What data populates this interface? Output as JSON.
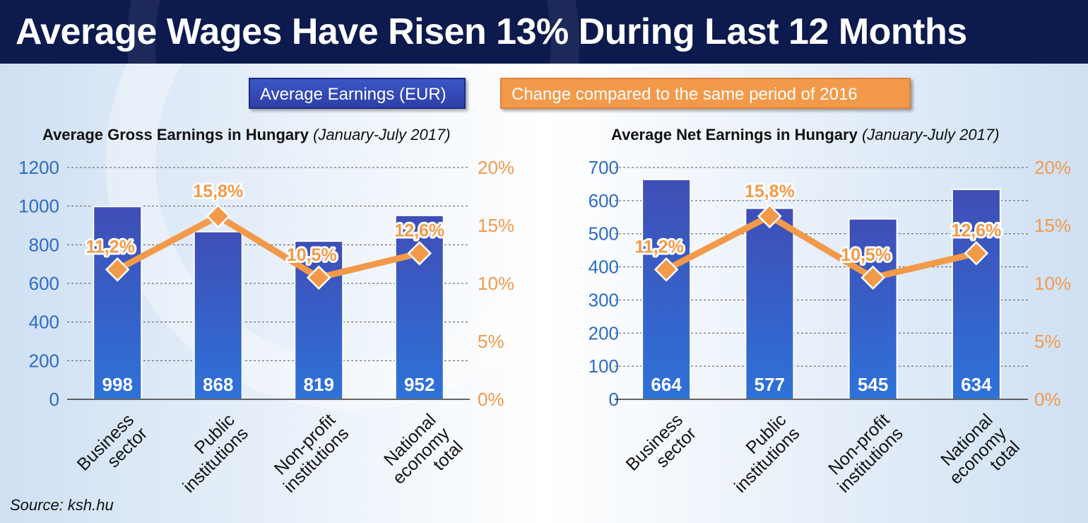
{
  "title": "Average Wages Have Risen 13% During Last 12 Months",
  "legend": {
    "bars": "Average Earnings (EUR)",
    "line": "Change compared to the same period of 2016"
  },
  "source": "Source: ksh.hu",
  "colors": {
    "bar_top": "#3f4eb6",
    "bar_bottom": "#2e72d8",
    "line": "#f29a4a",
    "left_axis": "#2d6cc4",
    "right_axis": "#f29a4a",
    "header": "#0c1a4d"
  },
  "chart_data": [
    {
      "type": "bar",
      "title": "Average Gross Earnings in Hungary",
      "subtitle": "(January-July 2017)",
      "categories": [
        "Business\nsector",
        "Public\ninstitutions",
        "Non-profit\ninstitutions",
        "National\neconomy\ntotal"
      ],
      "series": [
        {
          "name": "Average Earnings (EUR)",
          "axis": "left",
          "values": [
            998,
            868,
            819,
            952
          ],
          "labels": [
            "998",
            "868",
            "819",
            "952"
          ]
        },
        {
          "name": "Change compared to the same period of 2016",
          "type": "line",
          "axis": "right",
          "values": [
            11.2,
            15.8,
            10.5,
            12.6
          ],
          "labels": [
            "11,2%",
            "15,8%",
            "10,5%",
            "12,6%"
          ]
        }
      ],
      "ylim": [
        0,
        1200
      ],
      "yticks": [
        "0",
        "200",
        "400",
        "600",
        "800",
        "1000",
        "1200"
      ],
      "ylim_right": [
        0,
        20
      ],
      "yticks_right": [
        "0%",
        "5%",
        "10%",
        "15%",
        "20%"
      ],
      "grid": true
    },
    {
      "type": "bar",
      "title": "Average Net Earnings in Hungary",
      "subtitle": "(January-July 2017)",
      "categories": [
        "Business\nsector",
        "Public\ninstitutions",
        "Non-profit\ninstitutions",
        "National\neconomy\ntotal"
      ],
      "series": [
        {
          "name": "Average Earnings (EUR)",
          "axis": "left",
          "values": [
            664,
            577,
            545,
            634
          ],
          "labels": [
            "664",
            "577",
            "545",
            "634"
          ]
        },
        {
          "name": "Change compared to the same period of 2016",
          "type": "line",
          "axis": "right",
          "values": [
            11.2,
            15.8,
            10.5,
            12.6
          ],
          "labels": [
            "11,2%",
            "15,8%",
            "10,5%",
            "12,6%"
          ]
        }
      ],
      "ylim": [
        0,
        700
      ],
      "yticks": [
        "0",
        "100",
        "200",
        "300",
        "400",
        "500",
        "600",
        "700"
      ],
      "ylim_right": [
        0,
        20
      ],
      "yticks_right": [
        "0%",
        "5%",
        "10%",
        "15%",
        "20%"
      ],
      "grid": true
    }
  ]
}
